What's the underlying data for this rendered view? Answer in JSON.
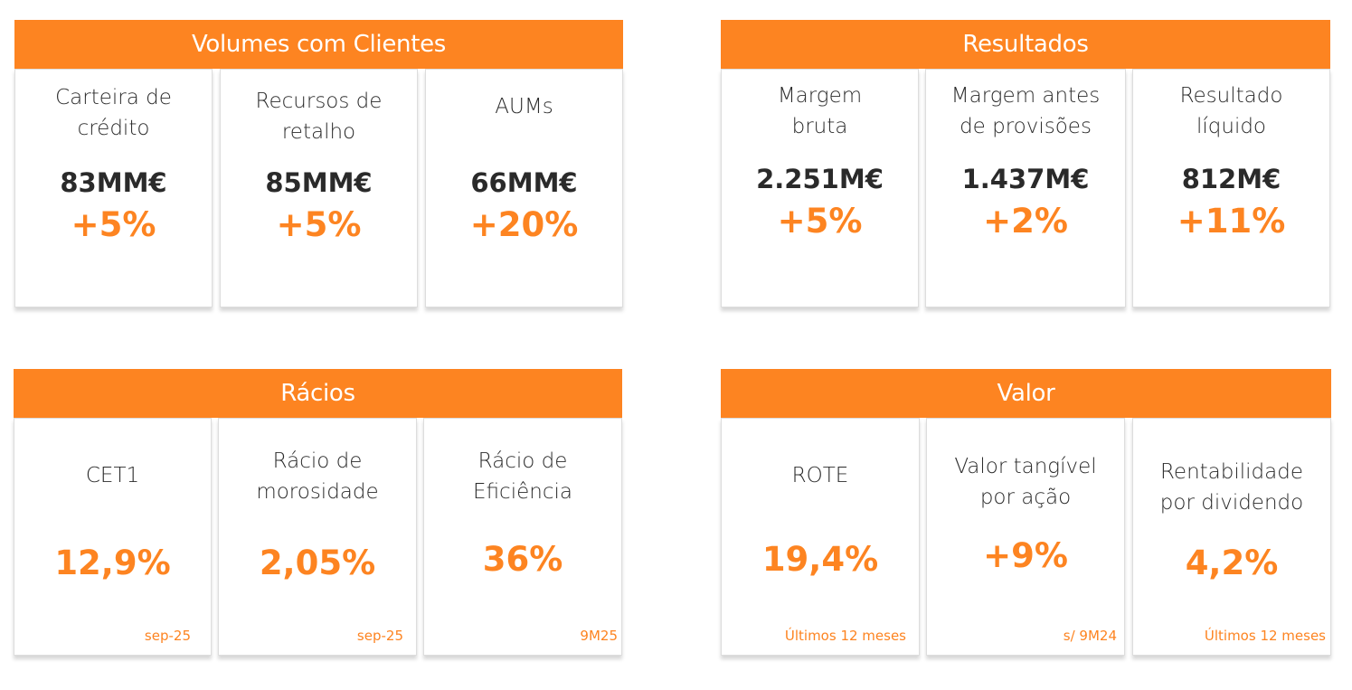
{
  "volumes": {
    "title": "Volumes com Clientes",
    "cards": [
      {
        "label": "Carteira de\ncrédito",
        "value": "83MM€",
        "change": "+5%"
      },
      {
        "label": "Recursos de\nretalho",
        "value": "85MM€",
        "change": "+5%"
      },
      {
        "label": "AUMs",
        "value": "66MM€",
        "change": "+20%"
      }
    ]
  },
  "resultados": {
    "title": "Resultados",
    "cards": [
      {
        "label": "Margem\nbruta",
        "value": "2.251M€",
        "change": "+5%"
      },
      {
        "label": "Margem antes\nde provisões",
        "value": "1.437M€",
        "change": "+2%"
      },
      {
        "label": "Resultado\nlíquido",
        "value": "812M€",
        "change": "+11%"
      }
    ]
  },
  "racios": {
    "title": "Rácios",
    "cards": [
      {
        "label": "CET1",
        "value": "12,9%",
        "note": "sep-25"
      },
      {
        "label": "Rácio de\nmorosidade",
        "value": "2,05%",
        "note": "sep-25"
      },
      {
        "label": "Rácio de\nEficiência",
        "value": "36%",
        "note": "9M25"
      }
    ]
  },
  "valor": {
    "title": "Valor",
    "cards": [
      {
        "label": "ROTE",
        "value": "19,4%",
        "note": "Últimos 12 meses"
      },
      {
        "label": "Valor tangível\npor ação",
        "value": "+9%",
        "note": "s/ 9M24"
      },
      {
        "label": "Rentabilidade\npor dividendo",
        "value": "4,2%",
        "note": "Últimos 12 meses"
      }
    ]
  }
}
